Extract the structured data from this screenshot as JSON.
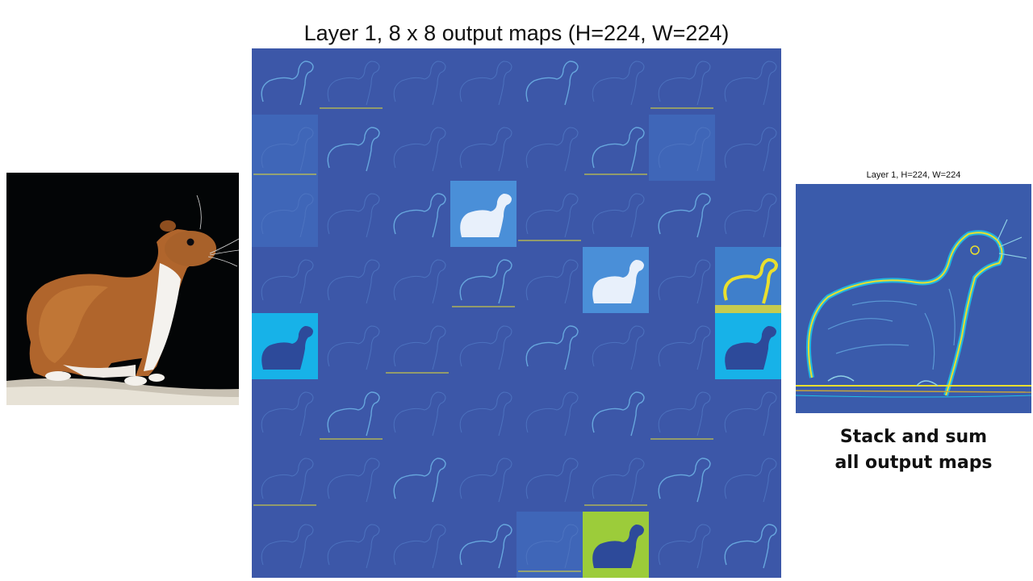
{
  "grid": {
    "title": "Layer 1, 8 x 8 output maps (H=224, W=224)",
    "rows": 8,
    "cols": 8,
    "cell_fill": [
      [
        "dark",
        "dark",
        "dark",
        "dark",
        "dark",
        "dark",
        "dark",
        "dark"
      ],
      [
        "medium",
        "dark",
        "dark",
        "dark",
        "dark",
        "dark",
        "medium",
        "dark"
      ],
      [
        "medium",
        "dark",
        "dark",
        "bright",
        "dark",
        "dark",
        "dark",
        "dark"
      ],
      [
        "dark",
        "dark",
        "dark",
        "dark",
        "dark",
        "bright",
        "dark",
        "yellow"
      ],
      [
        "cyan",
        "dark",
        "dark",
        "dark",
        "dark",
        "dark",
        "dark",
        "cyan"
      ],
      [
        "dark",
        "dark",
        "dark",
        "dark",
        "dark",
        "dark",
        "dark",
        "dark"
      ],
      [
        "dark",
        "dark",
        "dark",
        "dark",
        "dark",
        "dark",
        "dark",
        "dark"
      ],
      [
        "dark",
        "dark",
        "dark",
        "dark",
        "medium",
        "lime",
        "dark",
        "dark"
      ]
    ]
  },
  "colormap": {
    "dark": "#3c57a8",
    "medium": "#3f66b8",
    "bright": "#4a8fd8",
    "cyan": "#17b2e8",
    "yellow": "#3f7fcb",
    "lime": "#9ccc3a",
    "edge": "#6fb4e6",
    "hot": "#e9df2e"
  },
  "summary": {
    "title": "Layer 1, H=224, W=224"
  },
  "caption": {
    "line1": "Stack and sum",
    "line2": "all output maps"
  }
}
